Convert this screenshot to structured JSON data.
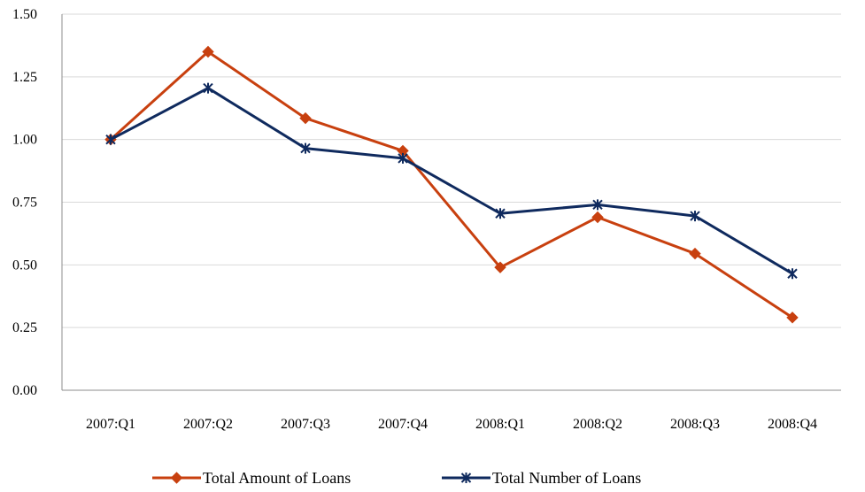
{
  "chart_data": {
    "type": "line",
    "categories": [
      "2007:Q1",
      "2007:Q2",
      "2007:Q3",
      "2007:Q4",
      "2008:Q1",
      "2008:Q2",
      "2008:Q3",
      "2008:Q4"
    ],
    "series": [
      {
        "name": "Total Amount of Loans",
        "values": [
          1.0,
          1.35,
          1.085,
          0.955,
          0.49,
          0.69,
          0.545,
          0.29
        ],
        "color": "#c8400f",
        "marker": "diamond"
      },
      {
        "name": "Total Number of Loans",
        "values": [
          1.0,
          1.205,
          0.965,
          0.925,
          0.705,
          0.74,
          0.695,
          0.465
        ],
        "color": "#0f2a5e",
        "marker": "asterisk"
      }
    ],
    "yticks": [
      "0.00",
      "0.25",
      "0.50",
      "0.75",
      "1.00",
      "1.25",
      "1.50"
    ],
    "ylim": [
      0,
      1.5
    ],
    "grid": true,
    "legend_position": "bottom"
  }
}
